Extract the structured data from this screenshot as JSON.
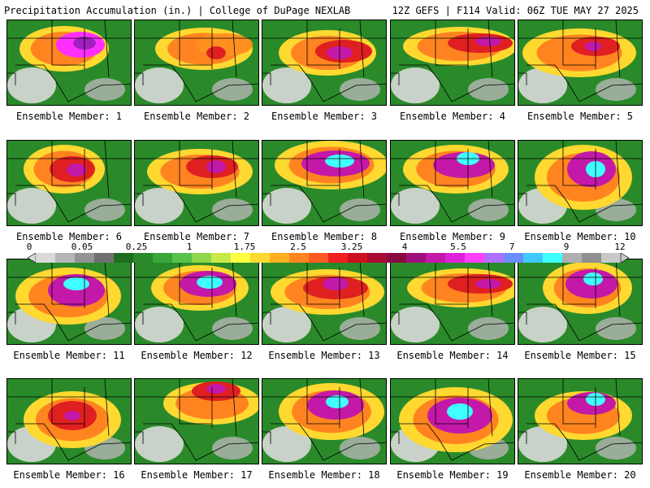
{
  "header": {
    "left_title": "Precipitation Accumulation (in.) | College of DuPage NEXLAB",
    "right_title": "12Z GEFS | F114 Valid: 06Z TUE MAY 27 2025"
  },
  "colorbar": {
    "tick_labels": [
      "0",
      "0.05",
      "0.25",
      "1",
      "1.75",
      "2.5",
      "3.25",
      "4",
      "5.5",
      "7",
      "9",
      "12"
    ],
    "colors": [
      "#d9d9d9",
      "#b5b5b5",
      "#939393",
      "#707070",
      "#1e6e1e",
      "#2a8a2a",
      "#3aa63a",
      "#58c24a",
      "#8ed74a",
      "#c8e84a",
      "#ffff40",
      "#ffd830",
      "#ffae20",
      "#ff8420",
      "#ff5a20",
      "#ee2020",
      "#cc1020",
      "#a80a30",
      "#8a0a40",
      "#a0107a",
      "#c418a8",
      "#e020d8",
      "#ff40ff",
      "#b070ff",
      "#6a8cff",
      "#40c8ff",
      "#40ffff",
      "#b0b0b0",
      "#909090",
      "#c8c8c8"
    ]
  },
  "panels": [
    {
      "label": "Ensemble Member: 1",
      "colors": {
        "core": "#ff30ff",
        "peak": "#a020c0"
      }
    },
    {
      "label": "Ensemble Member: 2",
      "colors": {
        "core": "#ff9020",
        "peak": "#e02020"
      }
    },
    {
      "label": "Ensemble Member: 3",
      "colors": {
        "core": "#e02020",
        "peak": "#c418a8"
      }
    },
    {
      "label": "Ensemble Member: 4",
      "colors": {
        "core": "#e02020",
        "peak": "#c418a8"
      }
    },
    {
      "label": "Ensemble Member: 5",
      "colors": {
        "core": "#e02020",
        "peak": "#c418a8"
      }
    },
    {
      "label": "Ensemble Member: 6",
      "colors": {
        "core": "#e02020",
        "peak": "#c418a8"
      }
    },
    {
      "label": "Ensemble Member: 7",
      "colors": {
        "core": "#e02020",
        "peak": "#c418a8"
      }
    },
    {
      "label": "Ensemble Member: 8",
      "colors": {
        "core": "#c418a8",
        "peak": "#40ffff"
      }
    },
    {
      "label": "Ensemble Member: 9",
      "colors": {
        "core": "#c418a8",
        "peak": "#40ffff"
      }
    },
    {
      "label": "Ensemble Member: 10",
      "colors": {
        "core": "#c418a8",
        "peak": "#40ffff"
      }
    },
    {
      "label": "Ensemble Member: 11",
      "colors": {
        "core": "#c418a8",
        "peak": "#40ffff"
      }
    },
    {
      "label": "Ensemble Member: 12",
      "colors": {
        "core": "#c418a8",
        "peak": "#40ffff"
      }
    },
    {
      "label": "Ensemble Member: 13",
      "colors": {
        "core": "#e02020",
        "peak": "#c418a8"
      }
    },
    {
      "label": "Ensemble Member: 14",
      "colors": {
        "core": "#e02020",
        "peak": "#c418a8"
      }
    },
    {
      "label": "Ensemble Member: 15",
      "colors": {
        "core": "#c418a8",
        "peak": "#40ffff"
      }
    },
    {
      "label": "Ensemble Member: 16",
      "colors": {
        "core": "#e02020",
        "peak": "#c418a8"
      }
    },
    {
      "label": "Ensemble Member: 17",
      "colors": {
        "core": "#e02020",
        "peak": "#c418a8"
      }
    },
    {
      "label": "Ensemble Member: 18",
      "colors": {
        "core": "#c418a8",
        "peak": "#40ffff"
      }
    },
    {
      "label": "Ensemble Member: 19",
      "colors": {
        "core": "#c418a8",
        "peak": "#40ffff"
      }
    },
    {
      "label": "Ensemble Member: 20",
      "colors": {
        "core": "#c418a8",
        "peak": "#40ffff"
      }
    }
  ]
}
